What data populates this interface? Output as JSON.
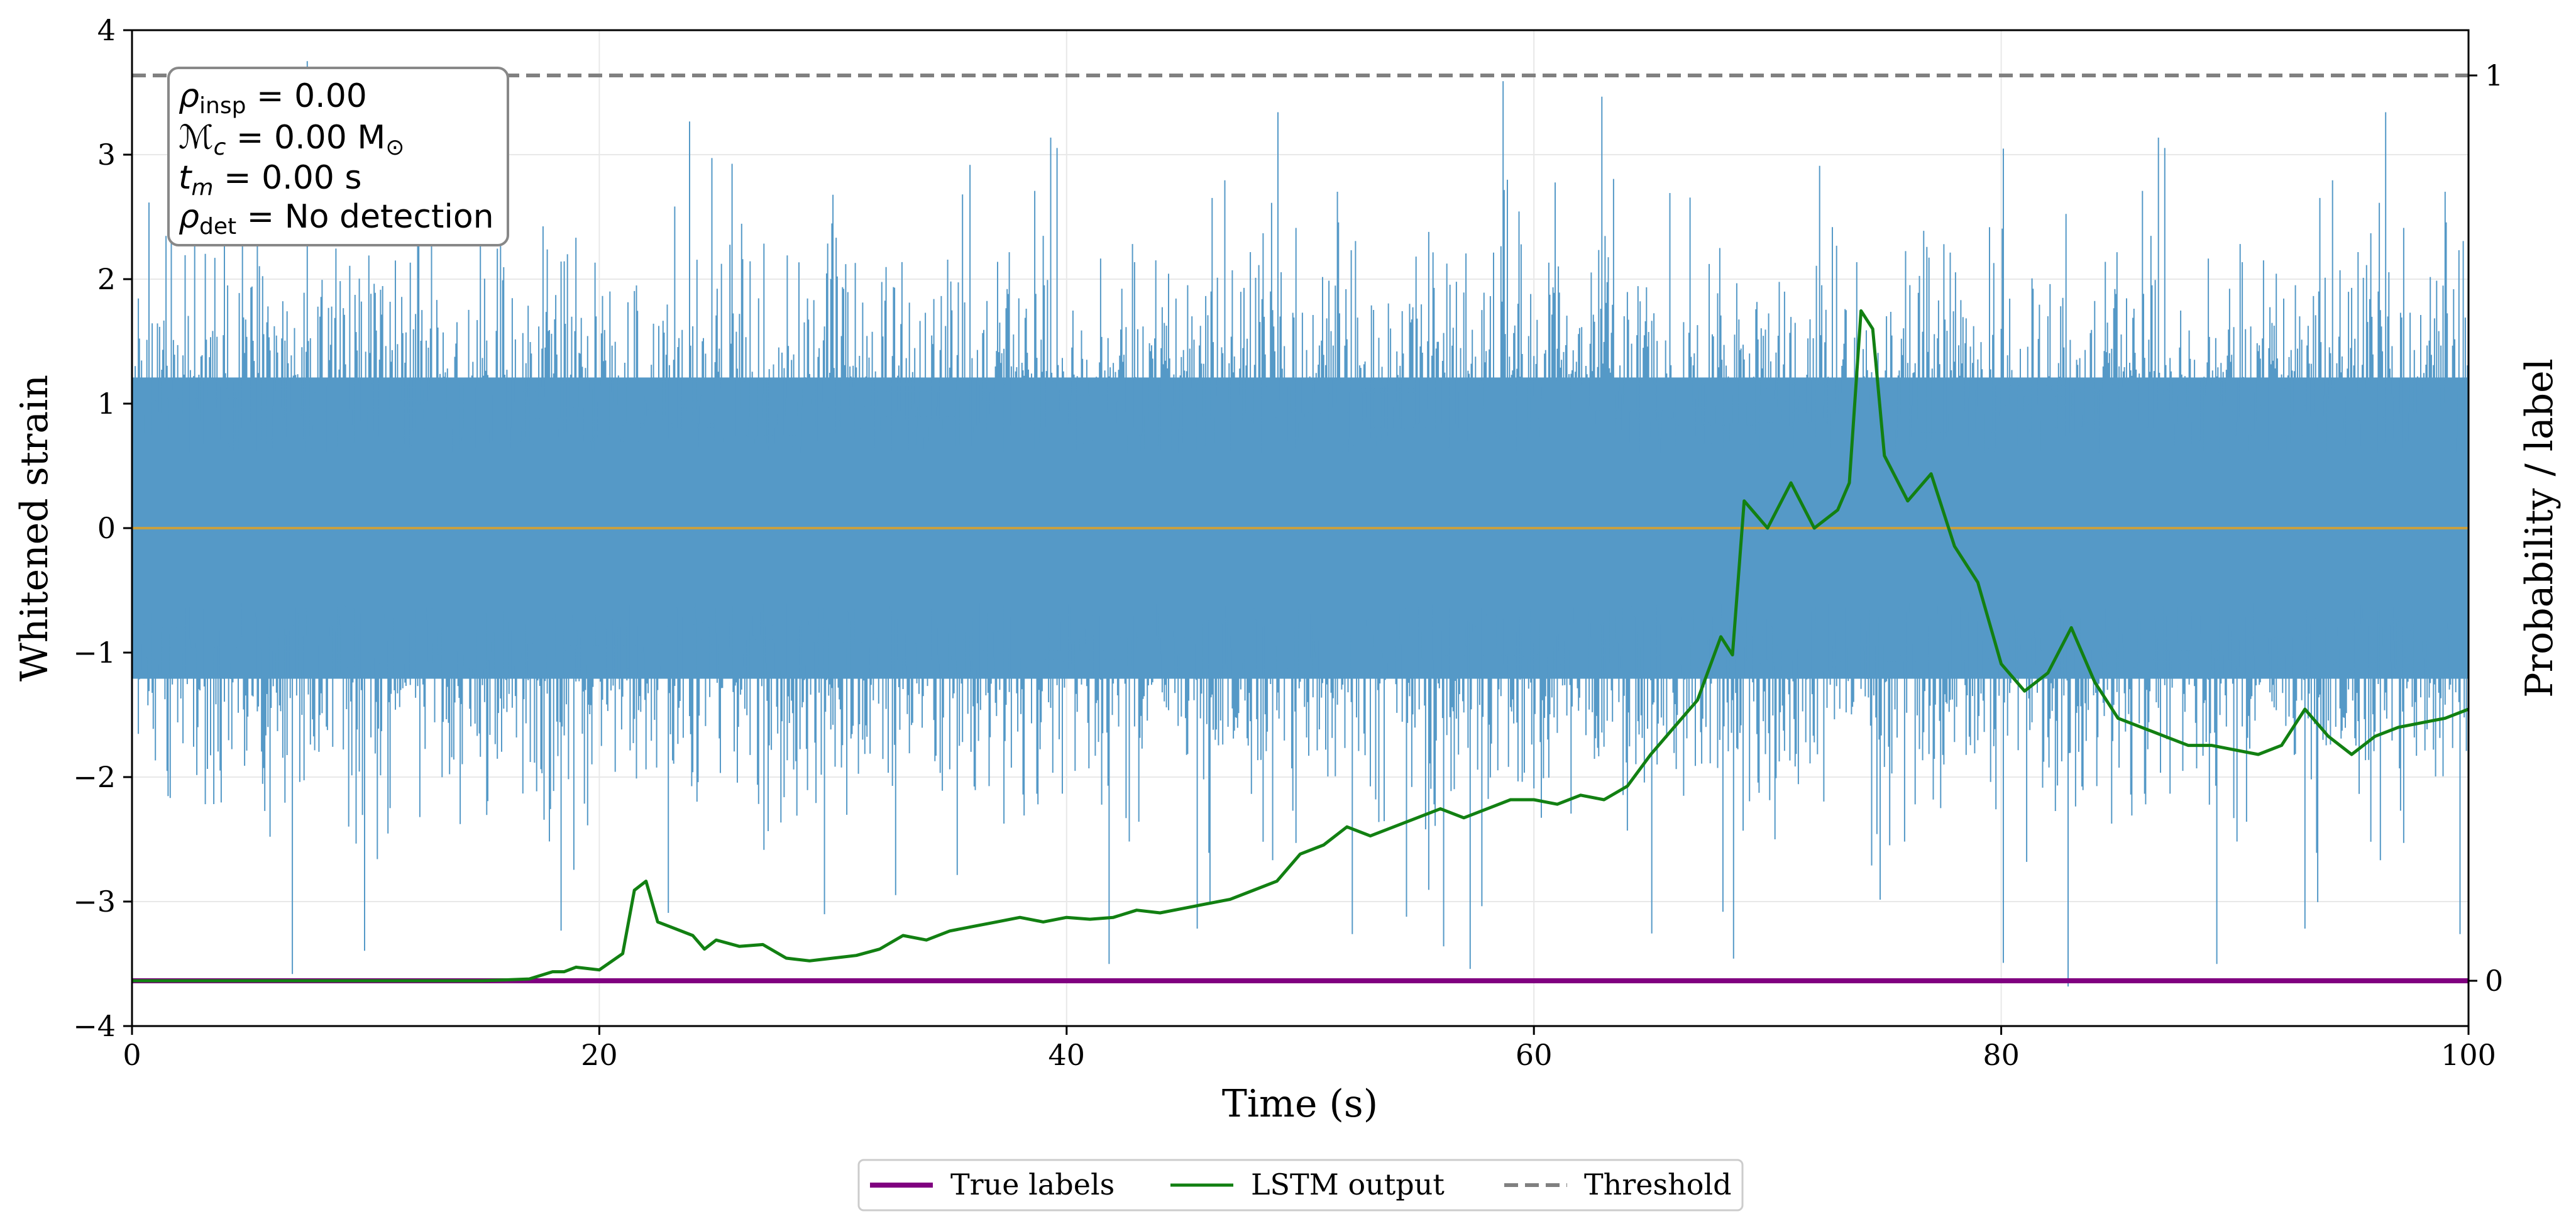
{
  "chart_data": {
    "type": "line",
    "xlabel": "Time (s)",
    "ylabel_left": "Whitened strain",
    "ylabel_right": "Probability / label",
    "xlim": [
      0,
      100
    ],
    "ylim_left": [
      -4,
      4
    ],
    "ylim_right": [
      -0.05,
      1.05
    ],
    "x_ticks": [
      0,
      20,
      40,
      60,
      80,
      100
    ],
    "y_ticks_left": [
      -4,
      -3,
      -2,
      -1,
      0,
      1,
      2,
      3,
      4
    ],
    "y_ticks_right": [
      0,
      1
    ],
    "grid": true,
    "legend_position": "bottom-center",
    "colors": {
      "strain": "#5599c7",
      "true_labels": "#800080",
      "lstm": "#128012",
      "threshold": "#808080",
      "zero_line": "#c8a040"
    },
    "annotation": {
      "line1_sym": "ρ",
      "line1_sub": "insp",
      "line1_val": " = 0.00",
      "line2_sym": "ℳ",
      "line2_sub": "c",
      "line2_val": " = 0.00 M",
      "line2_sun": "⊙",
      "line3_sym": "t",
      "line3_sub": "m",
      "line3_val": " = 0.00 s",
      "line4_sym": "ρ",
      "line4_sub": "det",
      "line4_val": " = No detection"
    },
    "series": [
      {
        "name": "Whitened strain",
        "axis": "left",
        "style": "noise",
        "typical_min": -2.2,
        "typical_max": 2.2,
        "extreme_min": -3.7,
        "extreme_max": 3.9
      },
      {
        "name": "True labels",
        "axis": "right",
        "x": [
          0,
          100
        ],
        "y": [
          0,
          0
        ]
      },
      {
        "name": "LSTM output",
        "axis": "right",
        "x": [
          0,
          15,
          17,
          18,
          18.5,
          19,
          20,
          21,
          21.5,
          22,
          22.5,
          23,
          24,
          24.5,
          25,
          26,
          27,
          28,
          29,
          30,
          31,
          32,
          33,
          34,
          35,
          36,
          37,
          38,
          39,
          40,
          41,
          42,
          43,
          44,
          45,
          46,
          47,
          48,
          49,
          50,
          51,
          52,
          53,
          54,
          55,
          56,
          57,
          58,
          59,
          60,
          61,
          62,
          63,
          64,
          65,
          66,
          67,
          68,
          68.5,
          69,
          70,
          71,
          72,
          73,
          73.5,
          74,
          74.5,
          75,
          76,
          77,
          78,
          79,
          80,
          81,
          82,
          83,
          84,
          85,
          86,
          87,
          88,
          89,
          90,
          91,
          92,
          93,
          94,
          95,
          96,
          97,
          98,
          99,
          100
        ],
        "y": [
          0,
          0,
          0.002,
          0.01,
          0.01,
          0.015,
          0.012,
          0.03,
          0.1,
          0.11,
          0.065,
          0.06,
          0.05,
          0.035,
          0.045,
          0.038,
          0.04,
          0.025,
          0.022,
          0.025,
          0.028,
          0.035,
          0.05,
          0.045,
          0.055,
          0.06,
          0.065,
          0.07,
          0.065,
          0.07,
          0.068,
          0.07,
          0.078,
          0.075,
          0.08,
          0.085,
          0.09,
          0.1,
          0.11,
          0.14,
          0.15,
          0.17,
          0.16,
          0.17,
          0.18,
          0.19,
          0.18,
          0.19,
          0.2,
          0.2,
          0.195,
          0.205,
          0.2,
          0.215,
          0.25,
          0.28,
          0.31,
          0.38,
          0.36,
          0.53,
          0.5,
          0.55,
          0.5,
          0.52,
          0.55,
          0.74,
          0.72,
          0.58,
          0.53,
          0.56,
          0.48,
          0.44,
          0.35,
          0.32,
          0.34,
          0.39,
          0.33,
          0.29,
          0.28,
          0.27,
          0.26,
          0.26,
          0.255,
          0.25,
          0.26,
          0.3,
          0.27,
          0.25,
          0.27,
          0.28,
          0.285,
          0.29,
          0.3
        ]
      },
      {
        "name": "Threshold",
        "axis": "right",
        "x": [
          0,
          100
        ],
        "y": [
          1,
          1
        ]
      }
    ]
  },
  "legend": {
    "true_labels": "True labels",
    "lstm": "LSTM output",
    "threshold": "Threshold"
  }
}
